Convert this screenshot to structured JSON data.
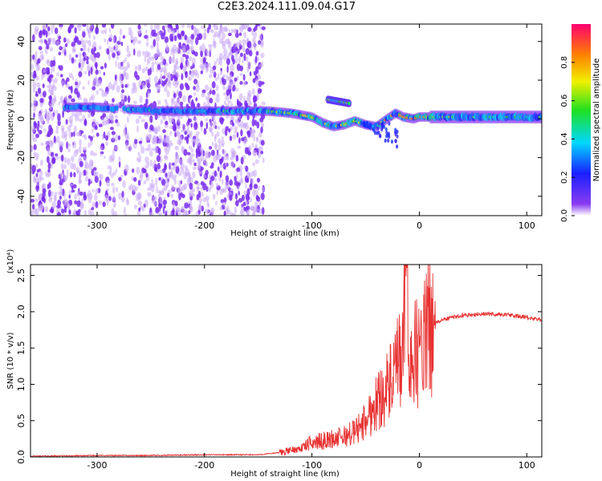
{
  "title": "C2E3.2024.111.09.04.G17",
  "colors": {
    "spectrogram_point": "#7a2cf0",
    "spectrogram_faint": "#c9a8f7",
    "snr_line": "#e83030",
    "axis": "#000000"
  },
  "chart_data": [
    {
      "type": "heatmap",
      "xlabel": "Height of straight line (km)",
      "ylabel": "Frequency (Hz)",
      "xlim": [
        -362,
        114
      ],
      "ylim": [
        -50,
        49
      ],
      "xticks": [
        -300,
        -200,
        -100,
        0,
        100
      ],
      "yticks": [
        -40,
        -20,
        0,
        20,
        40
      ],
      "grid": false,
      "colorbar": {
        "label": "Normalized spectral amplitude",
        "range": [
          0.0,
          1.0
        ],
        "ticks": [
          0.0,
          0.2,
          0.4,
          0.6,
          0.8
        ],
        "colormap": "rainbow"
      },
      "main_ridge": {
        "x": [
          -330,
          -300,
          -270,
          -240,
          -220,
          -200,
          -170,
          -140,
          -120,
          -100,
          -90,
          -80,
          -70,
          -60,
          -50,
          -40,
          -30,
          -22,
          -15,
          -5,
          0,
          20,
          50,
          80,
          114
        ],
        "y": [
          6,
          6,
          5,
          4,
          4,
          4,
          4,
          4,
          3,
          1,
          -2,
          -4,
          -3,
          -1,
          -3,
          -4,
          0,
          3,
          1,
          0,
          1,
          1,
          1,
          1,
          1
        ],
        "amplitude": [
          0.3,
          0.35,
          0.3,
          0.35,
          0.3,
          0.4,
          0.5,
          0.5,
          0.55,
          0.6,
          0.6,
          0.5,
          0.6,
          0.6,
          0.55,
          0.6,
          0.7,
          0.75,
          0.8,
          0.75,
          0.8,
          0.5,
          0.45,
          0.45,
          0.45
        ]
      },
      "upper_branch": {
        "x": [
          -85,
          -75,
          -65
        ],
        "y": [
          10,
          9,
          8
        ]
      }
    },
    {
      "type": "line",
      "xlabel": "Height of straight line (km)",
      "ylabel": "SNR (10 * v/v)",
      "y_multiplier": "(x10⁴)",
      "xlim": [
        -362,
        114
      ],
      "ylim": [
        0,
        2.65
      ],
      "xticks": [
        -300,
        -200,
        -100,
        0,
        100
      ],
      "yticks": [
        0.0,
        0.5,
        1.0,
        1.5,
        2.0,
        2.5
      ],
      "ytick_labels": [
        "0.0",
        "0.5",
        "1.0",
        "1.5",
        "2.0",
        "2.5"
      ],
      "grid": false,
      "series": [
        {
          "x": [
            -362,
            -300,
            -250,
            -200,
            -150,
            -130,
            -110,
            -100,
            -90,
            -80,
            -70,
            -60,
            -50,
            -40,
            -30,
            -25,
            -20,
            -15,
            -13,
            -10,
            -5,
            0,
            10,
            20,
            30,
            40,
            60,
            80,
            100,
            114
          ],
          "y": [
            0.01,
            0.02,
            0.02,
            0.03,
            0.03,
            0.06,
            0.12,
            0.2,
            0.22,
            0.25,
            0.28,
            0.35,
            0.5,
            0.75,
            0.95,
            1.05,
            1.25,
            1.4,
            2.65,
            1.45,
            1.4,
            1.45,
            1.8,
            1.88,
            1.92,
            1.95,
            1.97,
            1.96,
            1.92,
            1.88
          ]
        }
      ]
    }
  ]
}
